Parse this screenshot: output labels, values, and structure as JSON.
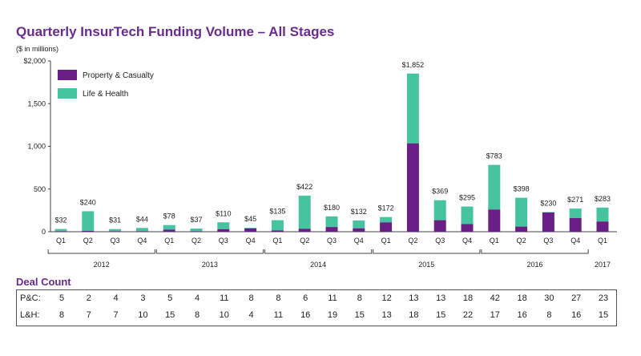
{
  "title": "Quarterly InsurTech Funding Volume – All Stages",
  "unit_label": "($ in millions)",
  "colors": {
    "pc": "#6a1f86",
    "lh": "#46c39f",
    "title": "#6a2c8c"
  },
  "chart_data": {
    "type": "bar",
    "stacked": true,
    "categories": [
      "Q1",
      "Q2",
      "Q3",
      "Q4",
      "Q1",
      "Q2",
      "Q3",
      "Q4",
      "Q1",
      "Q2",
      "Q3",
      "Q4",
      "Q1",
      "Q2",
      "Q3",
      "Q4",
      "Q1",
      "Q2",
      "Q3",
      "Q4",
      "Q1"
    ],
    "years": [
      {
        "label": "2012",
        "start": 0,
        "end": 3
      },
      {
        "label": "2013",
        "start": 4,
        "end": 7
      },
      {
        "label": "2014",
        "start": 8,
        "end": 11
      },
      {
        "label": "2015",
        "start": 12,
        "end": 15
      },
      {
        "label": "2016",
        "start": 16,
        "end": 19
      },
      {
        "label": "2017",
        "start": 20,
        "end": 20
      }
    ],
    "series": [
      {
        "name": "Property & Casualty",
        "values": [
          5,
          10,
          5,
          5,
          25,
          5,
          30,
          40,
          15,
          35,
          55,
          40,
          110,
          1035,
          135,
          90,
          260,
          60,
          225,
          160,
          120
        ]
      },
      {
        "name": "Life & Health",
        "values": [
          27,
          230,
          26,
          39,
          53,
          32,
          80,
          5,
          120,
          387,
          125,
          92,
          62,
          817,
          234,
          205,
          523,
          338,
          5,
          111,
          163
        ]
      }
    ],
    "totals": [
      "$32",
      "$240",
      "$31",
      "$44",
      "$78",
      "$37",
      "$110",
      "$45",
      "$135",
      "$422",
      "$180",
      "$132",
      "$172",
      "$1,852",
      "$369",
      "$295",
      "$783",
      "$398",
      "$230",
      "$271",
      "$283"
    ],
    "ylim": [
      0,
      2000
    ],
    "yticks": [
      {
        "value": 0,
        "label": "0"
      },
      {
        "value": 500,
        "label": "500"
      },
      {
        "value": 1000,
        "label": "1,000"
      },
      {
        "value": 1500,
        "label": "1,500"
      },
      {
        "value": 2000,
        "label": "$2,000"
      }
    ],
    "legend_position": "top-left"
  },
  "deal_count": {
    "title": "Deal Count",
    "pc_label": "P&C:",
    "lh_label": "L&H:",
    "pc": [
      "5",
      "2",
      "4",
      "3",
      "5",
      "4",
      "11",
      "8",
      "8",
      "6",
      "11",
      "8",
      "12",
      "13",
      "13",
      "18",
      "42",
      "18",
      "30",
      "27",
      "23"
    ],
    "lh": [
      "8",
      "7",
      "7",
      "10",
      "15",
      "8",
      "10",
      "4",
      "11",
      "16",
      "19",
      "15",
      "13",
      "18",
      "15",
      "22",
      "17",
      "16",
      "8",
      "16",
      "15"
    ]
  }
}
